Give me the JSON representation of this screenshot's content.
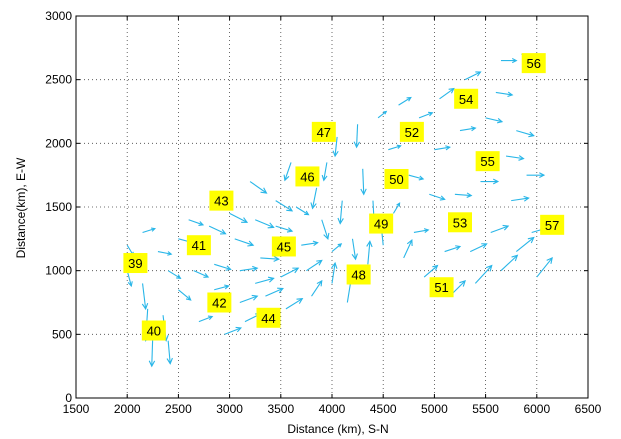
{
  "chart_data": {
    "type": "scatter",
    "subtype": "quiver",
    "title": "",
    "xlabel": "Distance (km), S-N",
    "ylabel": "Distance(km), E-W",
    "xlim": [
      1500,
      6500
    ],
    "ylim": [
      0,
      3000
    ],
    "xticks": [
      1500,
      2000,
      2500,
      3000,
      3500,
      4000,
      4500,
      5000,
      5500,
      6000,
      6500
    ],
    "yticks": [
      0,
      500,
      1000,
      1500,
      2000,
      2500,
      3000
    ],
    "grid": true,
    "grid_style": "dotted",
    "vector_color": "#29b6e8",
    "label_box_color": "#ffff00",
    "regions": [
      {
        "label": "39",
        "x": 2080,
        "y": 1060
      },
      {
        "label": "40",
        "x": 2260,
        "y": 530
      },
      {
        "label": "41",
        "x": 2700,
        "y": 1200
      },
      {
        "label": "42",
        "x": 2900,
        "y": 750
      },
      {
        "label": "43",
        "x": 2920,
        "y": 1550
      },
      {
        "label": "44",
        "x": 3380,
        "y": 630
      },
      {
        "label": "45",
        "x": 3530,
        "y": 1190
      },
      {
        "label": "46",
        "x": 3760,
        "y": 1740
      },
      {
        "label": "47",
        "x": 3920,
        "y": 2090
      },
      {
        "label": "48",
        "x": 4260,
        "y": 970
      },
      {
        "label": "49",
        "x": 4480,
        "y": 1370
      },
      {
        "label": "50",
        "x": 4630,
        "y": 1720
      },
      {
        "label": "51",
        "x": 5070,
        "y": 870
      },
      {
        "label": "52",
        "x": 4780,
        "y": 2090
      },
      {
        "label": "53",
        "x": 5250,
        "y": 1380
      },
      {
        "label": "54",
        "x": 5310,
        "y": 2350
      },
      {
        "label": "55",
        "x": 5520,
        "y": 1860
      },
      {
        "label": "56",
        "x": 5970,
        "y": 2630
      },
      {
        "label": "57",
        "x": 6150,
        "y": 1360
      }
    ],
    "vectors": [
      {
        "x": 2000,
        "y": 1200,
        "u": 60,
        "v": -80
      },
      {
        "x": 2000,
        "y": 1000,
        "u": 40,
        "v": -120
      },
      {
        "x": 2100,
        "y": 1100,
        "u": 80,
        "v": -60
      },
      {
        "x": 2150,
        "y": 900,
        "u": 30,
        "v": -200
      },
      {
        "x": 2200,
        "y": 700,
        "u": -20,
        "v": -250
      },
      {
        "x": 2250,
        "y": 500,
        "u": -10,
        "v": -250
      },
      {
        "x": 2350,
        "y": 650,
        "u": 30,
        "v": -200
      },
      {
        "x": 2400,
        "y": 450,
        "u": 20,
        "v": -180
      },
      {
        "x": 2150,
        "y": 1300,
        "u": 120,
        "v": 30
      },
      {
        "x": 2300,
        "y": 1150,
        "u": 130,
        "v": -20
      },
      {
        "x": 2400,
        "y": 1000,
        "u": 120,
        "v": -60
      },
      {
        "x": 2500,
        "y": 1250,
        "u": 140,
        "v": -30
      },
      {
        "x": 2500,
        "y": 850,
        "u": 120,
        "v": -80
      },
      {
        "x": 2600,
        "y": 1400,
        "u": 140,
        "v": -40
      },
      {
        "x": 2650,
        "y": 1000,
        "u": 140,
        "v": -50
      },
      {
        "x": 2700,
        "y": 600,
        "u": 130,
        "v": 40
      },
      {
        "x": 2800,
        "y": 1350,
        "u": 160,
        "v": -60
      },
      {
        "x": 2850,
        "y": 1050,
        "u": 160,
        "v": -40
      },
      {
        "x": 2850,
        "y": 850,
        "u": 140,
        "v": 30
      },
      {
        "x": 2950,
        "y": 500,
        "u": 160,
        "v": 50
      },
      {
        "x": 3000,
        "y": 1450,
        "u": 170,
        "v": -70
      },
      {
        "x": 3050,
        "y": 1250,
        "u": 180,
        "v": -50
      },
      {
        "x": 3100,
        "y": 1000,
        "u": 170,
        "v": 20
      },
      {
        "x": 3100,
        "y": 750,
        "u": 170,
        "v": 50
      },
      {
        "x": 3150,
        "y": 600,
        "u": 150,
        "v": 60
      },
      {
        "x": 3200,
        "y": 1700,
        "u": 160,
        "v": -90
      },
      {
        "x": 3250,
        "y": 1400,
        "u": 180,
        "v": -60
      },
      {
        "x": 3250,
        "y": 900,
        "u": 180,
        "v": 40
      },
      {
        "x": 3300,
        "y": 1100,
        "u": 180,
        "v": -10
      },
      {
        "x": 3350,
        "y": 800,
        "u": 170,
        "v": 60
      },
      {
        "x": 3450,
        "y": 1350,
        "u": 160,
        "v": -40
      },
      {
        "x": 3450,
        "y": 1550,
        "u": 160,
        "v": -80
      },
      {
        "x": 3500,
        "y": 950,
        "u": 170,
        "v": 70
      },
      {
        "x": 3550,
        "y": 700,
        "u": 160,
        "v": 80
      },
      {
        "x": 3600,
        "y": 1850,
        "u": -60,
        "v": -140
      },
      {
        "x": 3650,
        "y": 1500,
        "u": 120,
        "v": -60
      },
      {
        "x": 3700,
        "y": 1200,
        "u": 160,
        "v": 20
      },
      {
        "x": 3750,
        "y": 1000,
        "u": 150,
        "v": 80
      },
      {
        "x": 3800,
        "y": 800,
        "u": 100,
        "v": 120
      },
      {
        "x": 3850,
        "y": 1650,
        "u": -40,
        "v": -160
      },
      {
        "x": 3900,
        "y": 1400,
        "u": 60,
        "v": -150
      },
      {
        "x": 3950,
        "y": 1850,
        "u": -30,
        "v": -140
      },
      {
        "x": 4000,
        "y": 1150,
        "u": 90,
        "v": 60
      },
      {
        "x": 4000,
        "y": 900,
        "u": 30,
        "v": 160
      },
      {
        "x": 4050,
        "y": 2050,
        "u": -20,
        "v": -150
      },
      {
        "x": 4100,
        "y": 1550,
        "u": -20,
        "v": -180
      },
      {
        "x": 4150,
        "y": 750,
        "u": 40,
        "v": 200
      },
      {
        "x": 4200,
        "y": 1250,
        "u": 30,
        "v": -160
      },
      {
        "x": 4250,
        "y": 2150,
        "u": -10,
        "v": -180
      },
      {
        "x": 4300,
        "y": 1800,
        "u": 10,
        "v": -200
      },
      {
        "x": 4350,
        "y": 1050,
        "u": 20,
        "v": 180
      },
      {
        "x": 4400,
        "y": 1550,
        "u": 10,
        "v": -150
      },
      {
        "x": 4450,
        "y": 2200,
        "u": 80,
        "v": 50
      },
      {
        "x": 4500,
        "y": 1200,
        "u": -20,
        "v": 160
      },
      {
        "x": 4550,
        "y": 1950,
        "u": 120,
        "v": 30
      },
      {
        "x": 4600,
        "y": 1450,
        "u": 60,
        "v": 80
      },
      {
        "x": 4650,
        "y": 2300,
        "u": 120,
        "v": 60
      },
      {
        "x": 4700,
        "y": 1100,
        "u": 80,
        "v": 140
      },
      {
        "x": 4750,
        "y": 1750,
        "u": 140,
        "v": -30
      },
      {
        "x": 4800,
        "y": 1300,
        "u": 140,
        "v": 20
      },
      {
        "x": 4850,
        "y": 2200,
        "u": 130,
        "v": 40
      },
      {
        "x": 4900,
        "y": 950,
        "u": 130,
        "v": 90
      },
      {
        "x": 4950,
        "y": 1600,
        "u": 150,
        "v": -40
      },
      {
        "x": 5000,
        "y": 1950,
        "u": 150,
        "v": 20
      },
      {
        "x": 5050,
        "y": 2350,
        "u": 140,
        "v": 80
      },
      {
        "x": 5100,
        "y": 1150,
        "u": 150,
        "v": 40
      },
      {
        "x": 5150,
        "y": 800,
        "u": 150,
        "v": 120
      },
      {
        "x": 5200,
        "y": 1600,
        "u": 160,
        "v": -10
      },
      {
        "x": 5250,
        "y": 2100,
        "u": 150,
        "v": 20
      },
      {
        "x": 5300,
        "y": 2500,
        "u": 150,
        "v": 60
      },
      {
        "x": 5350,
        "y": 1150,
        "u": 160,
        "v": 60
      },
      {
        "x": 5400,
        "y": 900,
        "u": 160,
        "v": 140
      },
      {
        "x": 5450,
        "y": 1700,
        "u": 170,
        "v": 0
      },
      {
        "x": 5500,
        "y": 2200,
        "u": 160,
        "v": -30
      },
      {
        "x": 5550,
        "y": 1300,
        "u": 170,
        "v": 50
      },
      {
        "x": 5600,
        "y": 2400,
        "u": 160,
        "v": -20
      },
      {
        "x": 5650,
        "y": 1000,
        "u": 160,
        "v": 120
      },
      {
        "x": 5650,
        "y": 2650,
        "u": 150,
        "v": 0
      },
      {
        "x": 5700,
        "y": 1900,
        "u": 170,
        "v": -20
      },
      {
        "x": 5750,
        "y": 1550,
        "u": 170,
        "v": 20
      },
      {
        "x": 5800,
        "y": 2100,
        "u": 170,
        "v": -40
      },
      {
        "x": 5800,
        "y": 1150,
        "u": 170,
        "v": 110
      },
      {
        "x": 5850,
        "y": 2700,
        "u": 140,
        "v": -20
      },
      {
        "x": 5900,
        "y": 1750,
        "u": 170,
        "v": 0
      },
      {
        "x": 5950,
        "y": 1300,
        "u": 170,
        "v": 40
      },
      {
        "x": 6000,
        "y": 950,
        "u": 150,
        "v": 150
      }
    ]
  }
}
